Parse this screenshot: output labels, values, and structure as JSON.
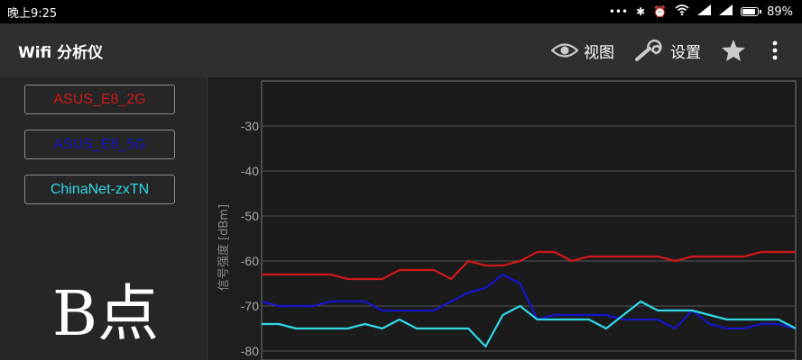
{
  "status_bar": {
    "time": "晚上9:25",
    "battery": "89%",
    "icons": [
      "more-dots-icon",
      "bluetooth-icon",
      "alarm-icon",
      "wifi-icon",
      "signal-icon",
      "signal-icon",
      "battery-icon"
    ]
  },
  "app_bar": {
    "title": "Wifi 分析仪",
    "view_label": "视图",
    "view_icon": "eye-icon",
    "settings_label": "设置",
    "settings_icon": "wrench-icon",
    "star_icon": "star-icon",
    "menu_icon": "overflow-menu-icon"
  },
  "networks": [
    {
      "name": "ASUS_E8_2G",
      "color": "#d01818"
    },
    {
      "name": "ASUS_E8_5G",
      "color": "#1515c8"
    },
    {
      "name": "ChinaNet-zxTN",
      "color": "#30d8e8"
    }
  ],
  "point_label": "B点",
  "chart_data": {
    "type": "line",
    "ylabel": "信号强度 [dBm]",
    "yticks": [
      -30,
      -40,
      -50,
      -60,
      -70,
      -80
    ],
    "ylim": [
      -82,
      -20
    ],
    "x": [
      0,
      1,
      2,
      3,
      4,
      5,
      6,
      7,
      8,
      9,
      10,
      11,
      12,
      13,
      14,
      15,
      16,
      17,
      18,
      19,
      20,
      21,
      22,
      23,
      24,
      25,
      26,
      27,
      28,
      29,
      30,
      31
    ],
    "grid": true,
    "series": [
      {
        "name": "ASUS_E8_2G",
        "color": "#d01818",
        "values": [
          -63,
          -63,
          -63,
          -63,
          -63,
          -64,
          -64,
          -64,
          -62,
          -62,
          -62,
          -64,
          -60,
          -61,
          -61,
          -60,
          -58,
          -58,
          -60,
          -59,
          -59,
          -59,
          -59,
          -59,
          -60,
          -59,
          -59,
          -59,
          -59,
          -58,
          -58,
          -58
        ]
      },
      {
        "name": "ASUS_E8_5G",
        "color": "#1515c8",
        "values": [
          -69,
          -70,
          -70,
          -70,
          -69,
          -69,
          -69,
          -71,
          -71,
          -71,
          -71,
          -69,
          -67,
          -66,
          -63,
          -65,
          -73,
          -72,
          -72,
          -72,
          -72,
          -73,
          -73,
          -73,
          -75,
          -71,
          -74,
          -75,
          -75,
          -74,
          -74,
          -75
        ]
      },
      {
        "name": "ChinaNet-zxTN",
        "color": "#30d8e8",
        "values": [
          -74,
          -74,
          -75,
          -75,
          -75,
          -75,
          -74,
          -75,
          -73,
          -75,
          -75,
          -75,
          -75,
          -79,
          -72,
          -70,
          -73,
          -73,
          -73,
          -73,
          -75,
          -72,
          -69,
          -71,
          -71,
          -71,
          -72,
          -73,
          -73,
          -73,
          -73,
          -75
        ]
      }
    ]
  }
}
